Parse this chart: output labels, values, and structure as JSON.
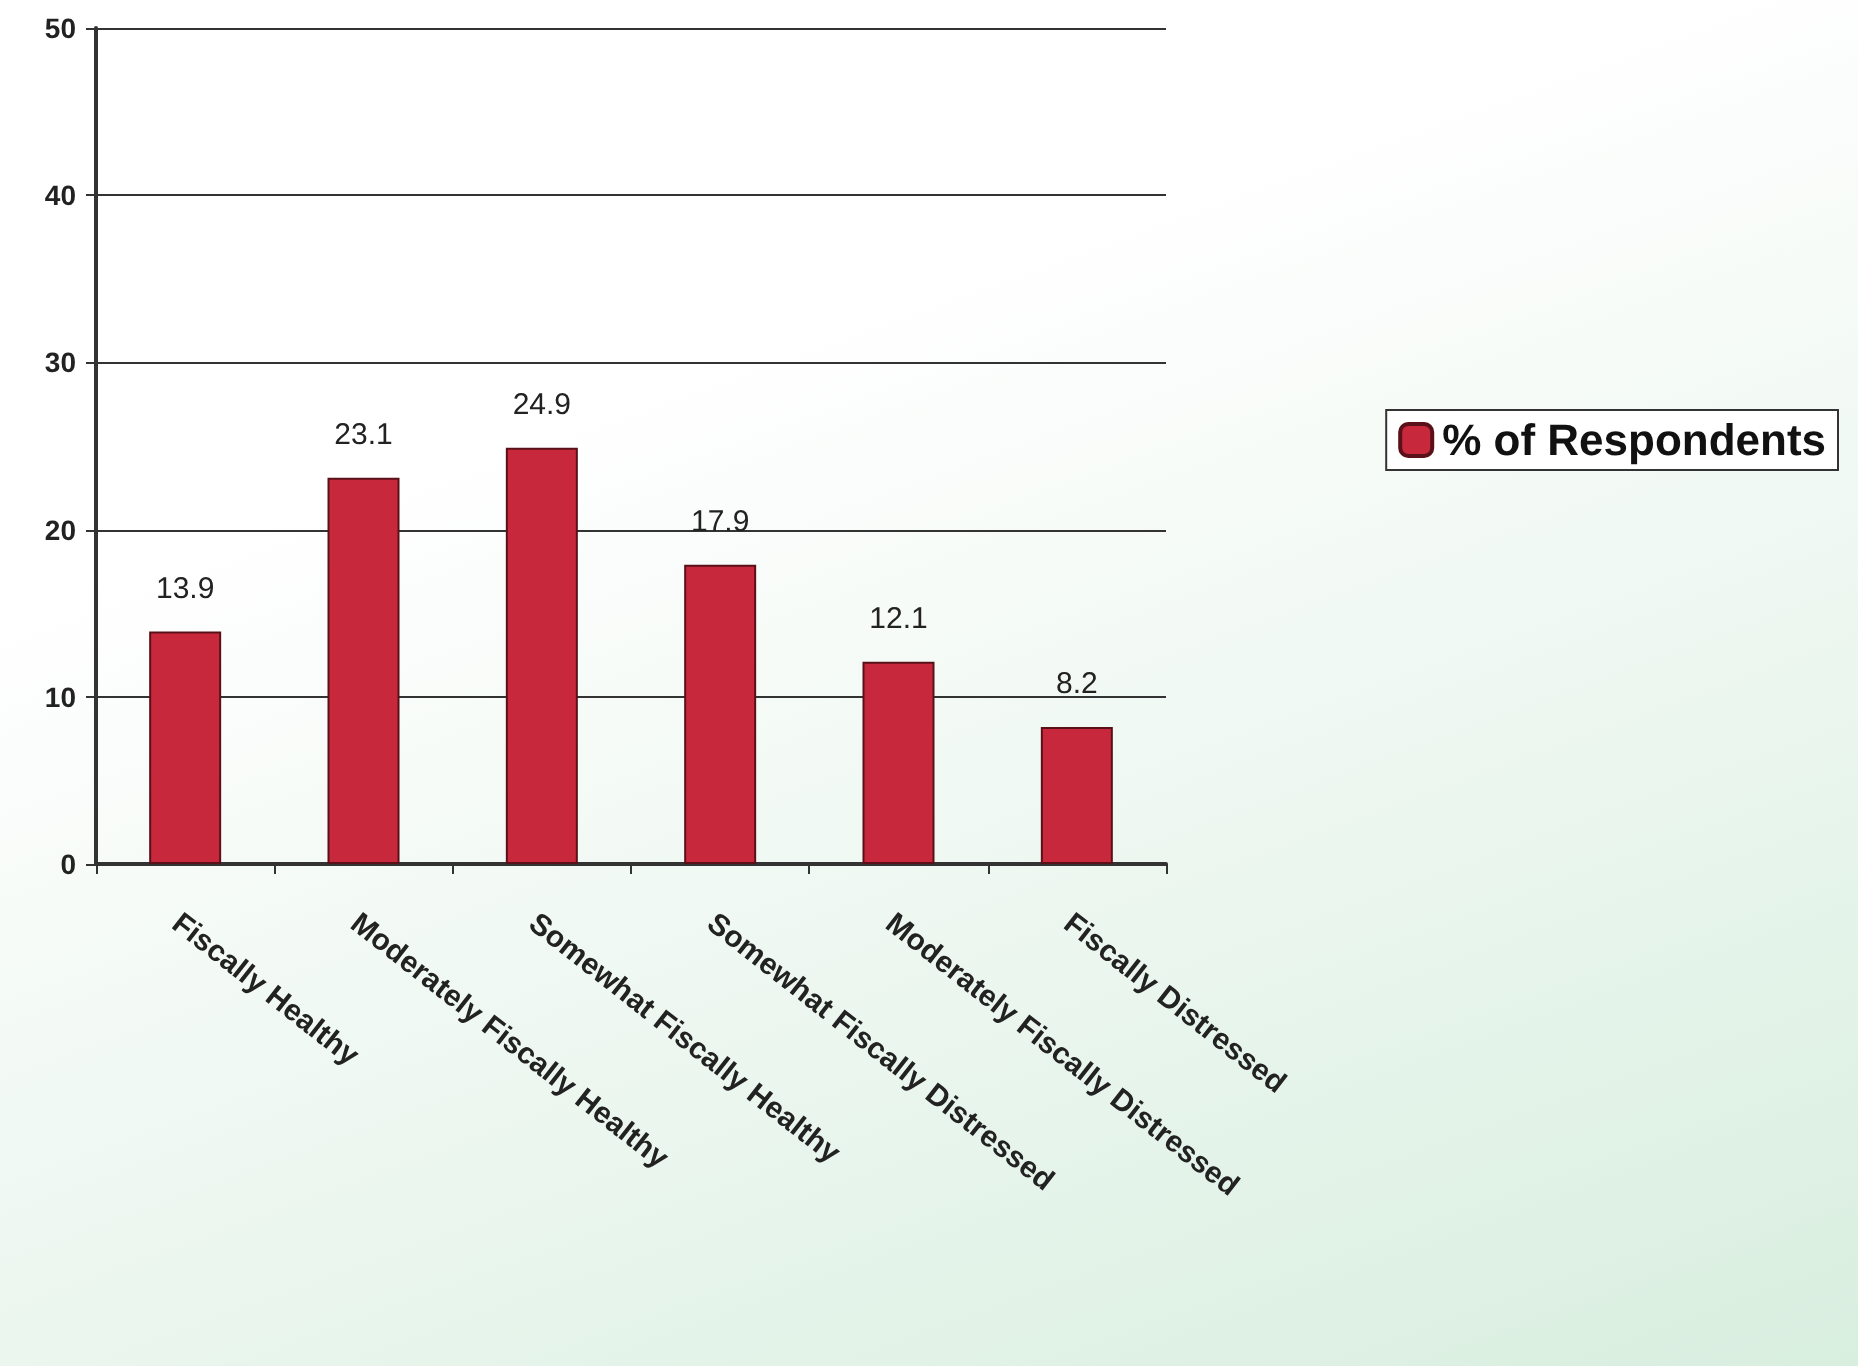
{
  "chart_data": {
    "type": "bar",
    "categories": [
      "Fiscally Healthy",
      "Moderately Fiscally Healthy",
      "Somewhat Fiscally Healthy",
      "Somewhat Fiscally Distressed",
      "Moderately Fiscally Distressed",
      "Fiscally Distressed"
    ],
    "series": [
      {
        "name": "% of Respondents",
        "color": "#c8283c",
        "values": [
          13.9,
          23.1,
          24.9,
          17.9,
          12.1,
          8.2
        ]
      }
    ],
    "ylim": [
      0,
      50
    ],
    "yticks": [
      0,
      10,
      20,
      30,
      40,
      50
    ],
    "grid": "y",
    "legend": "right",
    "data_labels": true
  }
}
